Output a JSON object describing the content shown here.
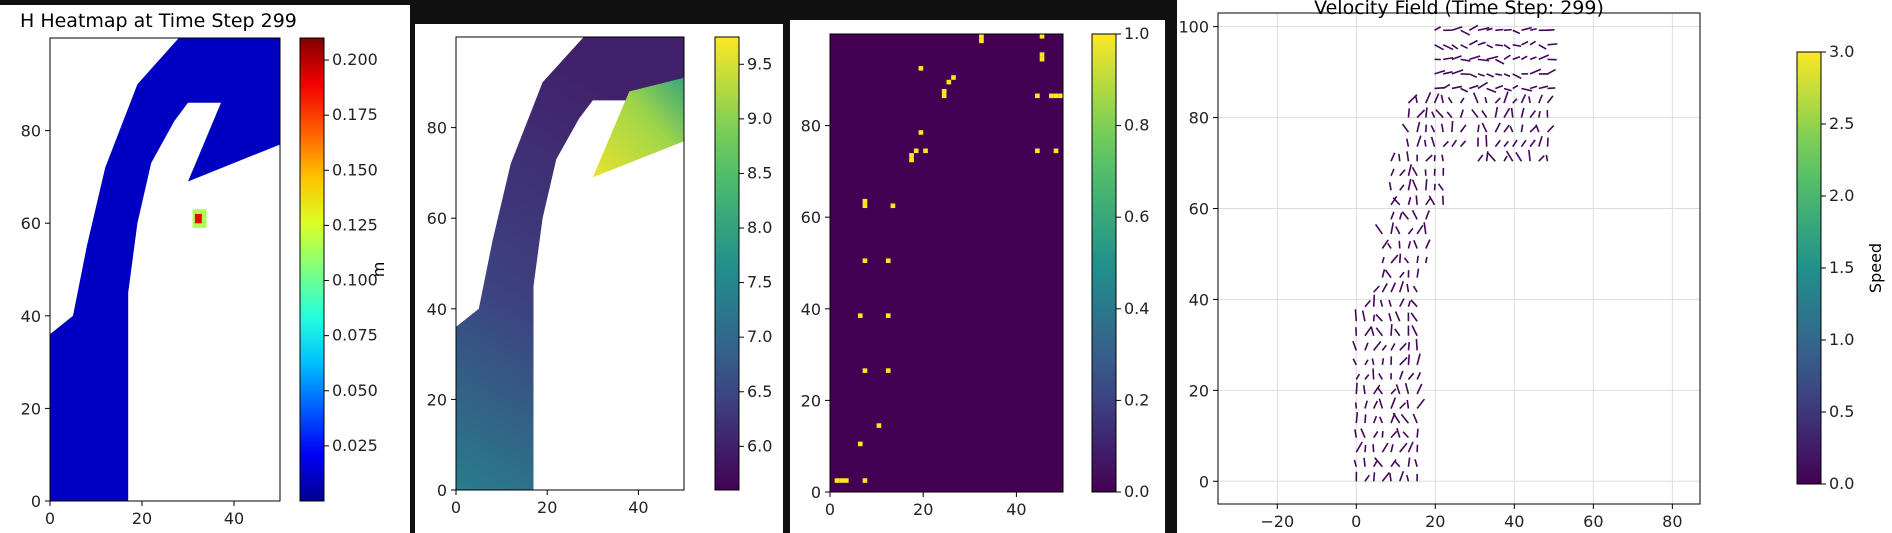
{
  "chart_data": [
    {
      "type": "heatmap",
      "title": "H Heatmap at Time Step 299",
      "xlim": [
        0,
        50
      ],
      "ylim": [
        0,
        100
      ],
      "x_ticks": [
        "0",
        "20",
        "40"
      ],
      "y_ticks": [
        "0",
        "20",
        "40",
        "60",
        "80"
      ],
      "colorbar": {
        "colormap": "jet",
        "label": "m",
        "range": [
          0,
          0.21
        ],
        "ticks": [
          "0.025",
          "0.050",
          "0.075",
          "0.100",
          "0.125",
          "0.150",
          "0.175",
          "0.200"
        ]
      }
    },
    {
      "type": "heatmap",
      "title": "",
      "xlim": [
        0,
        50
      ],
      "ylim": [
        0,
        100
      ],
      "x_ticks": [
        "0",
        "20",
        "40"
      ],
      "y_ticks": [
        "0",
        "20",
        "40",
        "60",
        "80"
      ],
      "colorbar": {
        "colormap": "viridis",
        "label": "",
        "range": [
          5.6,
          9.75
        ],
        "ticks": [
          "6.0",
          "6.5",
          "7.0",
          "7.5",
          "8.0",
          "8.5",
          "9.0",
          "9.5"
        ]
      }
    },
    {
      "type": "heatmap",
      "title": "",
      "xlim": [
        0,
        50
      ],
      "ylim": [
        0,
        100
      ],
      "x_ticks": [
        "0",
        "20",
        "40"
      ],
      "y_ticks": [
        "0",
        "20",
        "40",
        "60",
        "80"
      ],
      "colorbar": {
        "colormap": "viridis",
        "label": "",
        "range": [
          0,
          1
        ],
        "ticks": [
          "0.0",
          "0.2",
          "0.4",
          "0.6",
          "0.8",
          "1.0"
        ]
      }
    },
    {
      "type": "quiver",
      "title": "Velocity Field (Time Step: 299)",
      "xlim": [
        -35,
        87
      ],
      "ylim": [
        -5,
        103
      ],
      "x_ticks": [
        "−20",
        "0",
        "20",
        "40",
        "60",
        "80"
      ],
      "y_ticks": [
        "0",
        "20",
        "40",
        "60",
        "80",
        "100"
      ],
      "grid": true,
      "colorbar": {
        "colormap": "viridis",
        "label": "Speed",
        "range": [
          0,
          3
        ],
        "ticks": [
          "0.0",
          "0.5",
          "1.0",
          "1.5",
          "2.0",
          "2.5",
          "3.0"
        ]
      }
    }
  ]
}
